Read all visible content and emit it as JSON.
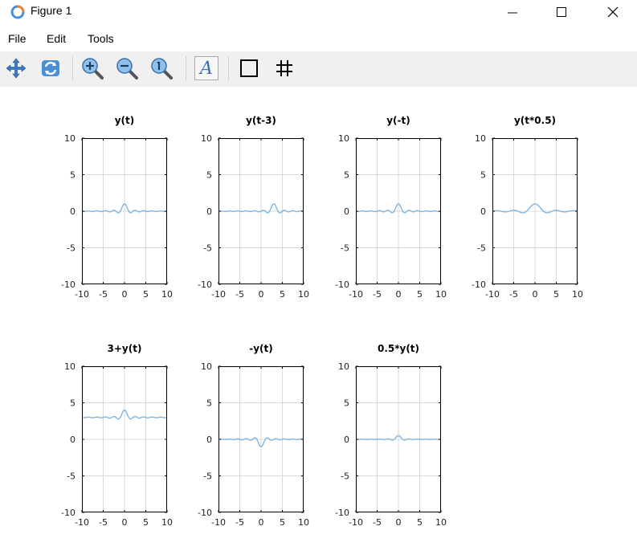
{
  "window": {
    "title": "Figure 1"
  },
  "menu": {
    "file": "File",
    "edit": "Edit",
    "tools": "Tools"
  },
  "toolbar": {
    "pan_icon": "pan-icon",
    "rotate_icon": "rotate-icon",
    "zoom_in_icon": "zoom-in-icon",
    "zoom_out_icon": "zoom-out-icon",
    "zoom_reset_icon": "zoom-reset-icon",
    "text_label": "A",
    "box_icon": "axes-box-icon",
    "grid_icon": "grid-icon"
  },
  "colors": {
    "line": "#7eb6e0",
    "grid": "#d9d9d9",
    "axes": "#000000"
  },
  "chart_data": [
    {
      "type": "line",
      "title": "y(t)",
      "xlim": [
        -10,
        10
      ],
      "ylim": [
        -10,
        10
      ],
      "xticks": [
        -10,
        -5,
        0,
        5,
        10
      ],
      "yticks": [
        10,
        5,
        0,
        -5,
        -10
      ],
      "grid": true,
      "series": [
        {
          "function": "sinc(t)",
          "peak_x": 0,
          "peak_y": 1,
          "offset": 0,
          "scale": 1
        }
      ]
    },
    {
      "type": "line",
      "title": "y(t-3)",
      "xlim": [
        -10,
        10
      ],
      "ylim": [
        -10,
        10
      ],
      "xticks": [
        -10,
        -5,
        0,
        5,
        10
      ],
      "yticks": [
        10,
        5,
        0,
        -5,
        -10
      ],
      "grid": true,
      "series": [
        {
          "function": "sinc(t-3)",
          "peak_x": 3,
          "peak_y": 1,
          "offset": 0,
          "scale": 1
        }
      ]
    },
    {
      "type": "line",
      "title": "y(-t)",
      "xlim": [
        -10,
        10
      ],
      "ylim": [
        -10,
        10
      ],
      "xticks": [
        -10,
        -5,
        0,
        5,
        10
      ],
      "yticks": [
        10,
        5,
        0,
        -5,
        -10
      ],
      "grid": true,
      "series": [
        {
          "function": "sinc(-t)",
          "peak_x": 0,
          "peak_y": 1,
          "offset": 0,
          "scale": 1
        }
      ]
    },
    {
      "type": "line",
      "title": "y(t*0.5)",
      "xlim": [
        -10,
        10
      ],
      "ylim": [
        -10,
        10
      ],
      "xticks": [
        -10,
        -5,
        0,
        5,
        10
      ],
      "yticks": [
        10,
        5,
        0,
        -5,
        -10
      ],
      "grid": true,
      "series": [
        {
          "function": "sinc(0.5t)",
          "peak_x": 0,
          "peak_y": 1,
          "offset": 0,
          "scale": 1
        }
      ]
    },
    {
      "type": "line",
      "title": "3+y(t)",
      "xlim": [
        -10,
        10
      ],
      "ylim": [
        -10,
        10
      ],
      "xticks": [
        -10,
        -5,
        0,
        5,
        10
      ],
      "yticks": [
        10,
        5,
        0,
        -5,
        -10
      ],
      "grid": true,
      "series": [
        {
          "function": "3+sinc(t)",
          "peak_x": 0,
          "peak_y": 4,
          "offset": 3,
          "scale": 1
        }
      ]
    },
    {
      "type": "line",
      "title": "-y(t)",
      "xlim": [
        -10,
        10
      ],
      "ylim": [
        -10,
        10
      ],
      "xticks": [
        -10,
        -5,
        0,
        5,
        10
      ],
      "yticks": [
        10,
        5,
        0,
        -5,
        -10
      ],
      "grid": true,
      "series": [
        {
          "function": "-sinc(t)",
          "peak_x": 0,
          "peak_y": -1,
          "offset": 0,
          "scale": -1
        }
      ]
    },
    {
      "type": "line",
      "title": "0.5*y(t)",
      "xlim": [
        -10,
        10
      ],
      "ylim": [
        -10,
        10
      ],
      "xticks": [
        -10,
        -5,
        0,
        5,
        10
      ],
      "yticks": [
        10,
        5,
        0,
        -5,
        -10
      ],
      "grid": true,
      "series": [
        {
          "function": "0.5*sinc(t)",
          "peak_x": 0,
          "peak_y": 0.5,
          "offset": 0,
          "scale": 0.5
        }
      ]
    }
  ]
}
